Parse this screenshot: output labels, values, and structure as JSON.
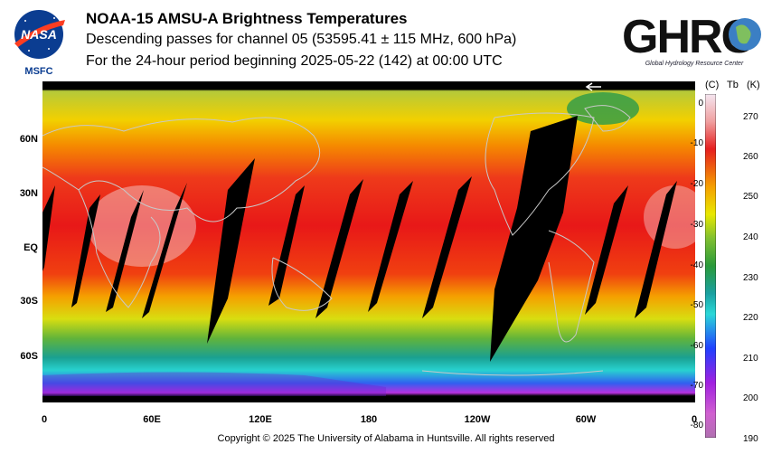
{
  "header": {
    "title": "NOAA-15 AMSU-A Brightness Temperatures",
    "subtitle": "Descending passes for channel 05 (53595.41 ± 115 MHz, 600 hPa)",
    "period": "For the 24-hour period beginning 2025-05-22 (142) at 00:00 UTC"
  },
  "logos": {
    "nasa_text": "NASA",
    "msfc_label": "MSFC",
    "ghrc_text": "GHRC",
    "ghrc_caption": "Global Hydrology Resource Center"
  },
  "map": {
    "lat_labels": [
      "60N",
      "30N",
      "EQ",
      "30S",
      "60S"
    ],
    "lon_labels": [
      "0",
      "60E",
      "120E",
      "180",
      "120W",
      "60W",
      "0"
    ]
  },
  "colorbar": {
    "unit_c": "(C)",
    "label_tb": "Tb",
    "unit_k": "(K)",
    "celsius_ticks": [
      "0",
      "-10",
      "-20",
      "-30",
      "-40",
      "-50",
      "-60",
      "-70",
      "-80"
    ],
    "kelvin_ticks": [
      "270",
      "260",
      "250",
      "240",
      "230",
      "220",
      "210",
      "200",
      "190"
    ],
    "colors": [
      "#f4e6f0",
      "#e61f1f",
      "#f5a000",
      "#e8e800",
      "#2a9a3a",
      "#2ad8d8",
      "#2040ff",
      "#a020e0",
      "#b070b0"
    ]
  },
  "footer": {
    "copyright": "Copyright © 2025 The University of Alabama in Huntsville.  All rights reserved"
  }
}
